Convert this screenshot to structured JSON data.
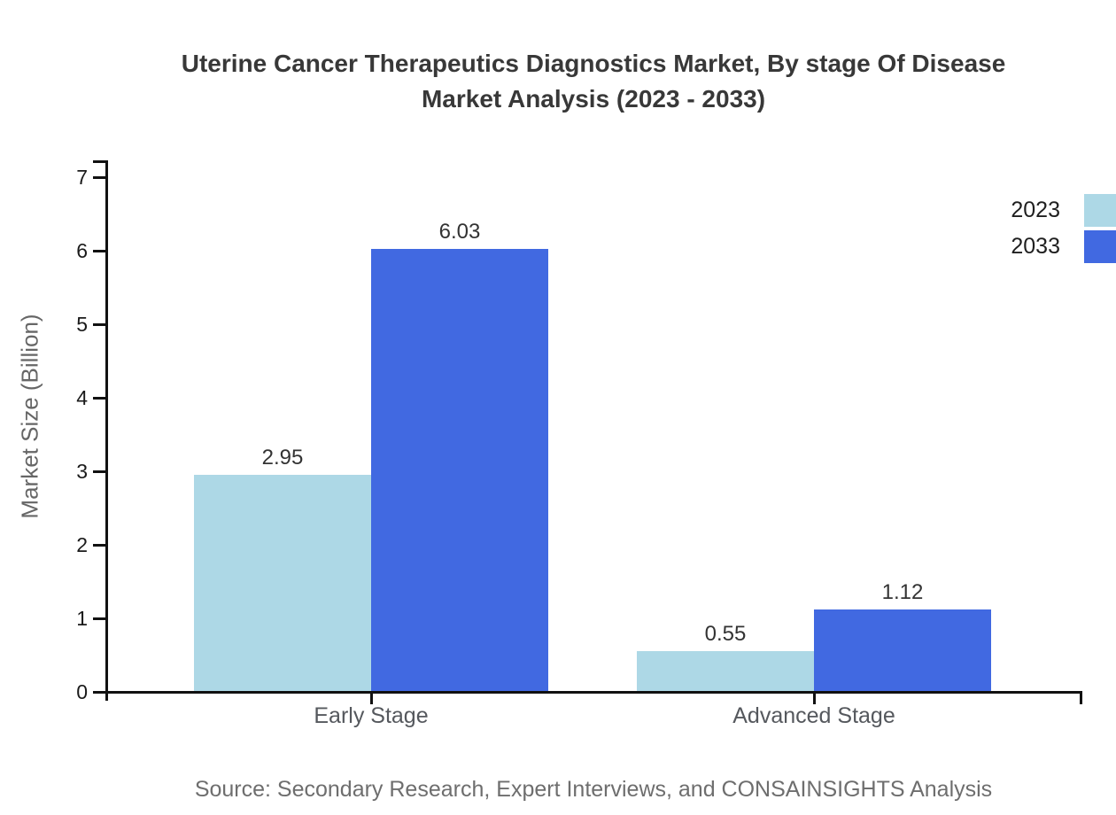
{
  "chart_data": {
    "type": "bar",
    "title_line1": "Uterine Cancer Therapeutics Diagnostics Market, By stage Of Disease",
    "title_line2": "Market Analysis (2023 - 2033)",
    "ylabel": "Market Size (Billion)",
    "xlabel": "",
    "categories": [
      "Early Stage",
      "Advanced Stage"
    ],
    "series": [
      {
        "name": "2023",
        "color": "#ADD8E6",
        "values": [
          2.95,
          0.55
        ]
      },
      {
        "name": "2033",
        "color": "#4169E1",
        "values": [
          6.03,
          1.12
        ]
      }
    ],
    "value_labels": [
      "2.95",
      "6.03",
      "0.55",
      "1.12"
    ],
    "ylim": [
      0,
      7
    ],
    "yticks": [
      0,
      1,
      2,
      3,
      4,
      5,
      6,
      7
    ],
    "grid": false,
    "legend_position": "top-right",
    "background": "#ffffff",
    "axis_color": "#111111"
  },
  "source_note": "Source: Secondary Research, Expert Interviews, and CONSAINSIGHTS Analysis"
}
